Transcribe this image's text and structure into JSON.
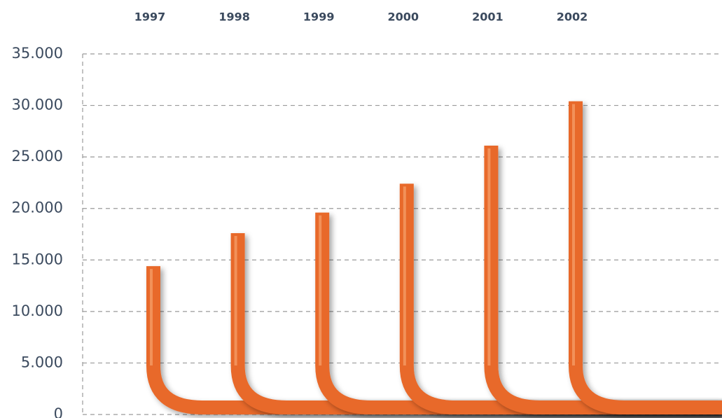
{
  "chart_data": {
    "type": "pipe-bar",
    "categories": [
      "1997",
      "1998",
      "1999",
      "2000",
      "2001",
      "2002"
    ],
    "values": [
      14400,
      17600,
      19600,
      22400,
      26100,
      30400
    ],
    "color": "#e8692a",
    "ylim": [
      0,
      35000
    ],
    "yticks": [
      0,
      {
        "value": 5000,
        "label": "5.000"
      },
      {
        "value": 10000,
        "label": "10.000"
      },
      {
        "value": 15000,
        "label": "15.000"
      },
      {
        "value": 20000,
        "label": "20.000"
      },
      {
        "value": 25000,
        "label": "25.000"
      },
      {
        "value": 30000,
        "label": "30.000"
      },
      {
        "value": 35000,
        "label": "35.000"
      }
    ],
    "grid": true
  }
}
